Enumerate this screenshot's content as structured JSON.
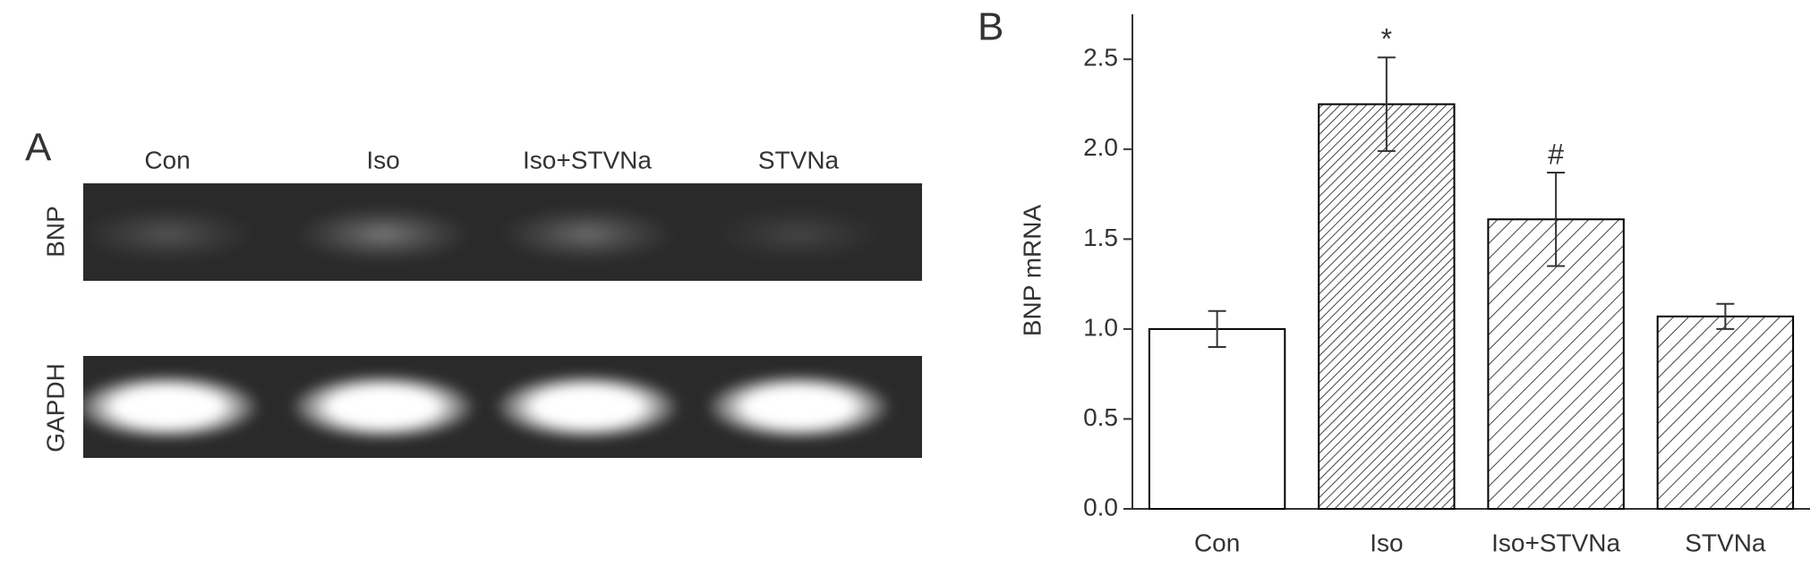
{
  "panel_a": {
    "label": "A",
    "lanes": [
      "Con",
      "Iso",
      "Iso+STVNa",
      "STVNa"
    ],
    "rows": [
      "BNP",
      "GAPDH"
    ]
  },
  "chart_data": {
    "type": "bar",
    "label": "B",
    "y_label": "BNP mRNA",
    "categories": [
      "Con",
      "Iso",
      "Iso+STVNa",
      "STVNa"
    ],
    "values": [
      1.0,
      2.25,
      1.61,
      1.07
    ],
    "errors": [
      0.1,
      0.26,
      0.26,
      0.07
    ],
    "annotations": [
      null,
      "*",
      "#",
      null
    ],
    "hatch": [
      "none",
      "dense",
      "sparse",
      "sparse"
    ],
    "color": "#000000",
    "ylim": [
      0,
      2.75
    ],
    "yticks": [
      {
        "value": 0,
        "label": "0.0"
      },
      0.5,
      {
        "value": 1,
        "label": "1.0"
      },
      1.5,
      {
        "value": 2,
        "label": "2.0"
      },
      2.5
    ]
  }
}
